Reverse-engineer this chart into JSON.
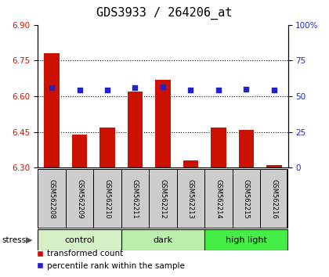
{
  "title": "GDS3933 / 264206_at",
  "samples": [
    "GSM562208",
    "GSM562209",
    "GSM562210",
    "GSM562211",
    "GSM562212",
    "GSM562213",
    "GSM562214",
    "GSM562215",
    "GSM562216"
  ],
  "bar_values": [
    6.78,
    6.44,
    6.47,
    6.62,
    6.67,
    6.33,
    6.47,
    6.46,
    6.31
  ],
  "baseline": 6.3,
  "blue_values": [
    6.635,
    6.625,
    6.628,
    6.635,
    6.64,
    6.625,
    6.627,
    6.63,
    6.625
  ],
  "ylim_left": [
    6.3,
    6.9
  ],
  "ylim_right": [
    0,
    100
  ],
  "yticks_left": [
    6.3,
    6.45,
    6.6,
    6.75,
    6.9
  ],
  "yticks_right": [
    0,
    25,
    50,
    75,
    100
  ],
  "groups": [
    {
      "label": "control",
      "indices": [
        0,
        1,
        2
      ],
      "color": "#d4f0c4"
    },
    {
      "label": "dark",
      "indices": [
        3,
        4,
        5
      ],
      "color": "#bbeeaa"
    },
    {
      "label": "high light",
      "indices": [
        6,
        7,
        8
      ],
      "color": "#44ee44"
    }
  ],
  "bar_color": "#cc1100",
  "blue_color": "#2222cc",
  "bar_width": 0.55,
  "stress_label": "stress",
  "sample_box_color": "#cccccc",
  "title_fontsize": 11,
  "tick_fontsize": 7.5,
  "legend_fontsize": 7.5
}
